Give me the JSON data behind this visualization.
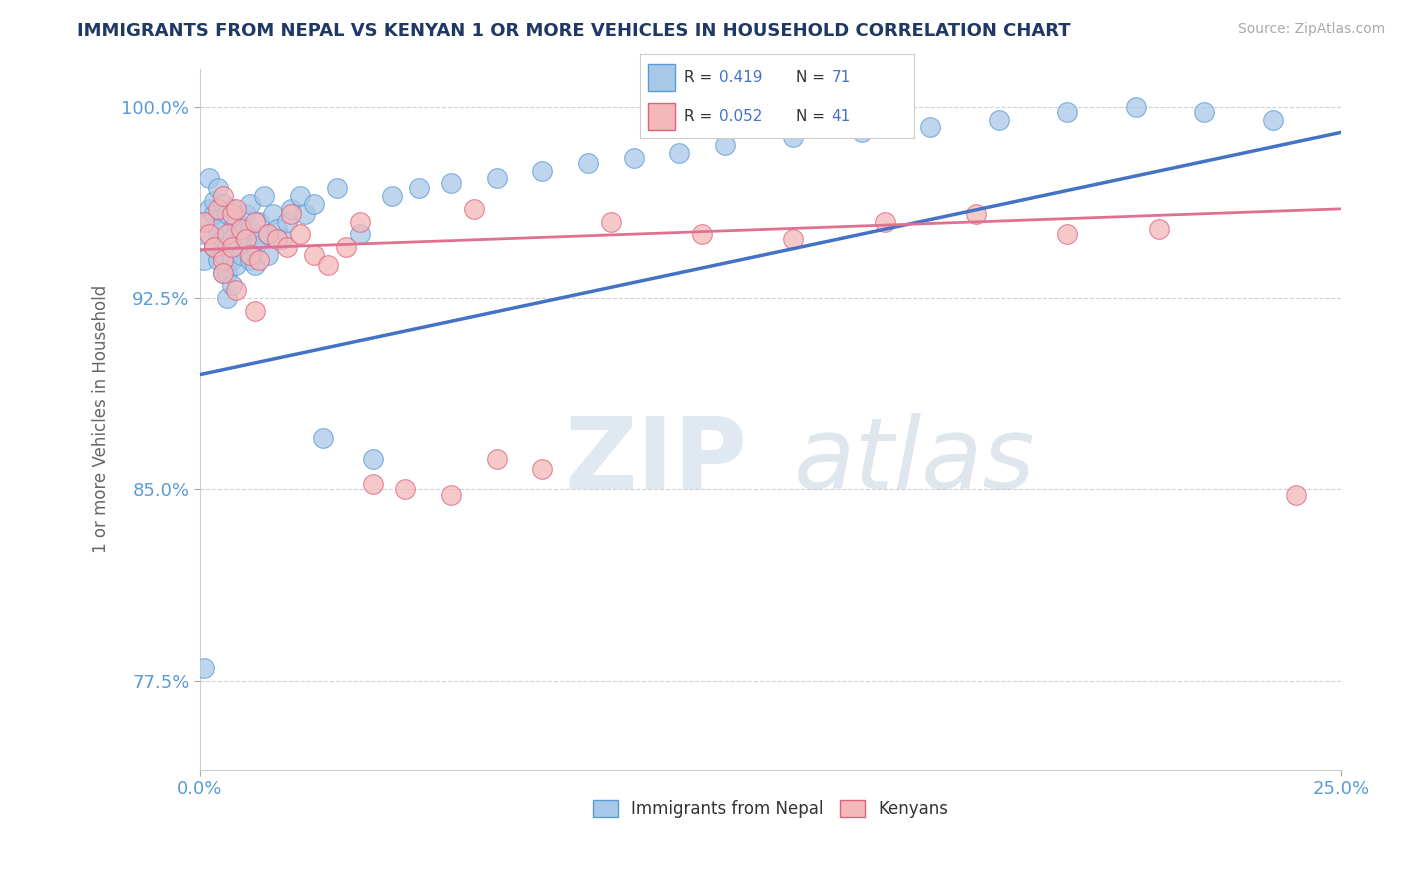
{
  "title": "IMMIGRANTS FROM NEPAL VS KENYAN 1 OR MORE VEHICLES IN HOUSEHOLD CORRELATION CHART",
  "source": "Source: ZipAtlas.com",
  "ylabel": "1 or more Vehicles in Household",
  "xlim": [
    0.0,
    0.25
  ],
  "ylim": [
    0.74,
    1.015
  ],
  "xtick_positions": [
    0.0,
    0.25
  ],
  "xtick_labels": [
    "0.0%",
    "25.0%"
  ],
  "ytick_vals": [
    0.775,
    0.85,
    0.925,
    1.0
  ],
  "ytick_labels": [
    "77.5%",
    "85.0%",
    "92.5%",
    "100.0%"
  ],
  "nepal_R": 0.419,
  "nepal_N": 71,
  "kenya_R": 0.052,
  "kenya_N": 41,
  "nepal_color": "#a8c8e8",
  "nepal_edge": "#5b9bd5",
  "kenya_color": "#f4b8b8",
  "kenya_edge": "#e06080",
  "nepal_line_color": "#4472c4",
  "kenya_line_color": "#e07090",
  "nepal_scatter_x": [
    0.001,
    0.001,
    0.002,
    0.002,
    0.002,
    0.003,
    0.003,
    0.003,
    0.004,
    0.004,
    0.004,
    0.005,
    0.005,
    0.005,
    0.005,
    0.006,
    0.006,
    0.006,
    0.006,
    0.007,
    0.007,
    0.007,
    0.007,
    0.007,
    0.008,
    0.008,
    0.008,
    0.009,
    0.009,
    0.01,
    0.01,
    0.011,
    0.011,
    0.011,
    0.012,
    0.012,
    0.013,
    0.013,
    0.014,
    0.015,
    0.015,
    0.016,
    0.017,
    0.018,
    0.019,
    0.02,
    0.022,
    0.023,
    0.025,
    0.027,
    0.03,
    0.035,
    0.038,
    0.042,
    0.048,
    0.055,
    0.065,
    0.075,
    0.085,
    0.095,
    0.105,
    0.115,
    0.13,
    0.145,
    0.16,
    0.175,
    0.19,
    0.205,
    0.22,
    0.235,
    0.001
  ],
  "nepal_scatter_y": [
    0.95,
    0.94,
    0.96,
    0.972,
    0.955,
    0.945,
    0.958,
    0.963,
    0.952,
    0.94,
    0.968,
    0.948,
    0.962,
    0.935,
    0.942,
    0.958,
    0.945,
    0.935,
    0.925,
    0.952,
    0.94,
    0.96,
    0.948,
    0.93,
    0.945,
    0.955,
    0.938,
    0.95,
    0.942,
    0.958,
    0.948,
    0.962,
    0.94,
    0.952,
    0.945,
    0.938,
    0.948,
    0.955,
    0.965,
    0.95,
    0.942,
    0.958,
    0.952,
    0.948,
    0.955,
    0.96,
    0.965,
    0.958,
    0.962,
    0.87,
    0.968,
    0.95,
    0.862,
    0.965,
    0.968,
    0.97,
    0.972,
    0.975,
    0.978,
    0.98,
    0.982,
    0.985,
    0.988,
    0.99,
    0.992,
    0.995,
    0.998,
    1.0,
    0.998,
    0.995,
    0.78
  ],
  "kenya_scatter_x": [
    0.001,
    0.002,
    0.003,
    0.004,
    0.005,
    0.005,
    0.006,
    0.007,
    0.007,
    0.008,
    0.009,
    0.01,
    0.011,
    0.012,
    0.013,
    0.015,
    0.017,
    0.019,
    0.022,
    0.025,
    0.028,
    0.032,
    0.038,
    0.045,
    0.055,
    0.065,
    0.075,
    0.09,
    0.11,
    0.13,
    0.15,
    0.17,
    0.19,
    0.21,
    0.005,
    0.008,
    0.012,
    0.02,
    0.035,
    0.06,
    0.24
  ],
  "kenya_scatter_y": [
    0.955,
    0.95,
    0.945,
    0.96,
    0.94,
    0.965,
    0.95,
    0.958,
    0.945,
    0.96,
    0.952,
    0.948,
    0.942,
    0.955,
    0.94,
    0.95,
    0.948,
    0.945,
    0.95,
    0.942,
    0.938,
    0.945,
    0.852,
    0.85,
    0.848,
    0.862,
    0.858,
    0.955,
    0.95,
    0.948,
    0.955,
    0.958,
    0.95,
    0.952,
    0.935,
    0.928,
    0.92,
    0.958,
    0.955,
    0.96,
    0.848
  ],
  "watermark_zip": "ZIP",
  "watermark_atlas": "atlas",
  "background_color": "#ffffff",
  "grid_color": "#d0d0d0",
  "tick_color": "#5b9bd5",
  "title_color": "#1f3864",
  "ylabel_color": "#666666",
  "source_color": "#aaaaaa"
}
